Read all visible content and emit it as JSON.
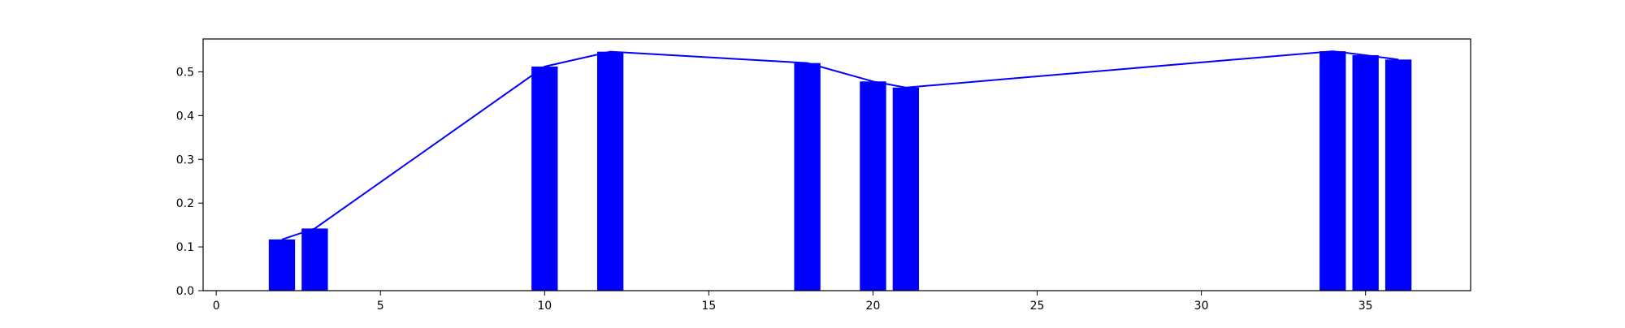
{
  "chart_data": {
    "type": "bar",
    "title": "",
    "xlabel": "",
    "ylabel": "",
    "xlim": [
      -0.4,
      38.2
    ],
    "ylim": [
      0.0,
      0.575
    ],
    "grid": false,
    "legend": "none",
    "bar_color": "#0000ff",
    "line_color": "#0000ff",
    "x_ticks": [
      0,
      5,
      10,
      15,
      20,
      25,
      30,
      35
    ],
    "x_tick_labels": [
      "0",
      "5",
      "10",
      "15",
      "20",
      "25",
      "30",
      "35"
    ],
    "y_ticks": [
      0.0,
      0.1,
      0.2,
      0.3,
      0.4,
      0.5
    ],
    "y_tick_labels": [
      "0.0",
      "0.1",
      "0.2",
      "0.3",
      "0.4",
      "0.5"
    ],
    "bar_width": 0.8,
    "x": [
      2,
      3,
      10,
      12,
      18,
      20,
      21,
      34,
      35,
      36
    ],
    "values": [
      0.117,
      0.142,
      0.512,
      0.546,
      0.52,
      0.478,
      0.464,
      0.547,
      0.538,
      0.528
    ],
    "line": {
      "x": [
        2,
        3,
        10,
        12,
        18,
        20,
        21,
        34,
        35,
        36
      ],
      "y": [
        0.117,
        0.142,
        0.512,
        0.546,
        0.52,
        0.478,
        0.464,
        0.547,
        0.538,
        0.528
      ]
    }
  }
}
